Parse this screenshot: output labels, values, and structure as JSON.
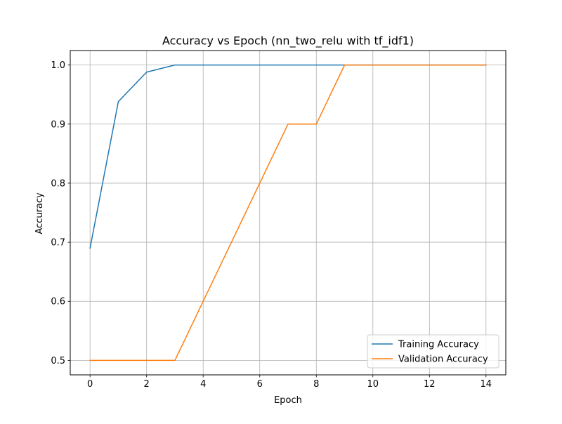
{
  "chart_data": {
    "type": "line",
    "title": "Accuracy vs Epoch (nn_two_relu with tf_idf1)",
    "xlabel": "Epoch",
    "ylabel": "Accuracy",
    "xlim": [
      -0.7,
      14.7
    ],
    "ylim": [
      0.4755,
      1.0245
    ],
    "xticks": [
      0,
      2,
      4,
      6,
      8,
      10,
      12,
      14
    ],
    "yticks": [
      0.5,
      0.6,
      0.7,
      0.8,
      0.9,
      1.0
    ],
    "xtick_labels": [
      "0",
      "2",
      "4",
      "6",
      "8",
      "10",
      "12",
      "14"
    ],
    "ytick_labels": [
      "0.5",
      "0.6",
      "0.7",
      "0.8",
      "0.9",
      "1.0"
    ],
    "grid": true,
    "legend_position": "lower-right",
    "x": [
      0,
      1,
      2,
      3,
      4,
      5,
      6,
      7,
      8,
      9,
      10,
      11,
      12,
      13,
      14
    ],
    "series": [
      {
        "name": "Training Accuracy",
        "color": "#1f77b4",
        "values": [
          0.69,
          0.938,
          0.988,
          1.0,
          1.0,
          1.0,
          1.0,
          1.0,
          1.0,
          1.0,
          1.0,
          1.0,
          1.0,
          1.0,
          1.0
        ]
      },
      {
        "name": "Validation Accuracy",
        "color": "#ff7f0e",
        "values": [
          0.5,
          0.5,
          0.5,
          0.5,
          0.6,
          0.7,
          0.8,
          0.9,
          0.9,
          1.0,
          1.0,
          1.0,
          1.0,
          1.0,
          1.0
        ]
      }
    ]
  }
}
